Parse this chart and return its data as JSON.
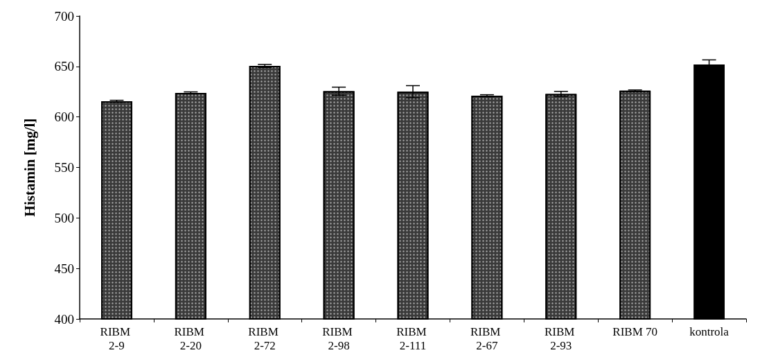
{
  "chart_data": {
    "type": "bar",
    "ylabel": "Histamin [mg/l]",
    "categories": [
      "RIBM 2-9",
      "RIBM 2-20",
      "RIBM 2-72",
      "RIBM 2-98",
      "RIBM 2-111",
      "RIBM 2-67",
      "RIBM 2-93",
      "RIBM 70",
      "kontrola"
    ],
    "values": [
      615.5,
      623.8,
      650.5,
      625.5,
      625,
      621,
      622.8,
      626,
      652
    ],
    "errors": [
      1,
      1,
      1.5,
      4,
      6,
      1,
      2.5,
      0.7,
      4.5
    ],
    "colors": [
      "#3a3a3a",
      "#3a3a3a",
      "#3a3a3a",
      "#3a3a3a",
      "#3a3a3a",
      "#3a3a3a",
      "#3a3a3a",
      "#3a3a3a",
      "#000000"
    ],
    "ylim": [
      400,
      700
    ],
    "yticks": [
      400,
      450,
      500,
      550,
      600,
      650,
      700
    ],
    "grid": false
  }
}
